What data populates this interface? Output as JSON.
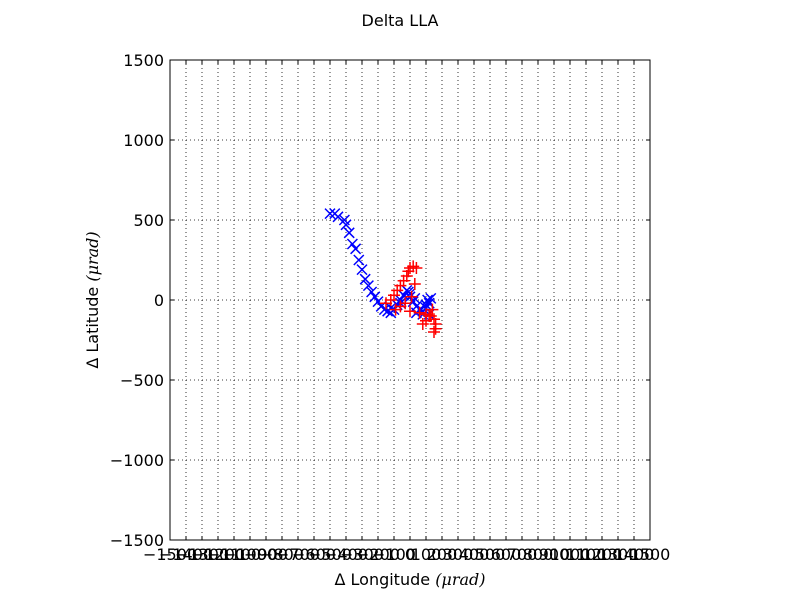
{
  "chart_data": {
    "type": "scatter",
    "title": "Delta LLA",
    "xlabel": "Δ Longitude",
    "xlabel_unit": "(μrad)",
    "ylabel": "Δ Latitude",
    "ylabel_unit": "(μrad)",
    "xlim": [
      -1500,
      1500
    ],
    "ylim": [
      -1500,
      1500
    ],
    "grid": true,
    "x_ticks": [
      -1500,
      -1400,
      -1300,
      -1200,
      -1100,
      -1000,
      -900,
      -800,
      -700,
      -600,
      -500,
      -400,
      -300,
      -200,
      -100,
      0,
      100,
      200,
      300,
      400,
      500,
      600,
      700,
      800,
      900,
      1000,
      1100,
      1200,
      1300,
      1400,
      1500
    ],
    "x_tick_labels": [
      "−1500",
      "−1400",
      "−1300",
      "−1200",
      "−1100",
      "−1000",
      "−900",
      "−800",
      "−700",
      "−600",
      "−500",
      "−400",
      "−300",
      "−200",
      "−100",
      "0",
      "100",
      "200",
      "300",
      "400",
      "500",
      "600",
      "700",
      "800",
      "900",
      "1000",
      "1100",
      "1200",
      "1300",
      "1400",
      "1500"
    ],
    "y_ticks": [
      1500,
      1000,
      500,
      0,
      -500,
      -1000,
      -1500
    ],
    "y_tick_labels": [
      "1500",
      "1000",
      "500",
      "0",
      "−500",
      "−1000",
      "−1500"
    ],
    "series": [
      {
        "marker": "x",
        "color": "#0000ff",
        "x": [
          -500,
          -470,
          -450,
          -410,
          -400,
          -380,
          -360,
          -340,
          -320,
          -300,
          -280,
          -260,
          -240,
          -220,
          -200,
          -180,
          -160,
          -140,
          -120,
          -100,
          -80,
          -60,
          -40,
          -20,
          0,
          20,
          40,
          60,
          80,
          100,
          120,
          130,
          -120,
          -60,
          0,
          40,
          80,
          100,
          110,
          -10,
          30,
          70,
          120
        ],
        "y": [
          540,
          540,
          520,
          500,
          470,
          420,
          350,
          320,
          250,
          190,
          130,
          90,
          50,
          20,
          -10,
          -40,
          -60,
          -70,
          -80,
          -60,
          -30,
          0,
          30,
          60,
          20,
          -10,
          -40,
          -60,
          -70,
          -50,
          -20,
          10,
          -50,
          -20,
          40,
          -80,
          -90,
          -30,
          0,
          50,
          10,
          -60,
          -90
        ]
      },
      {
        "marker": "+",
        "color": "#ff0000",
        "x": [
          -150,
          -120,
          -100,
          -80,
          -60,
          -40,
          -20,
          -10,
          0,
          20,
          40,
          30,
          10,
          -30,
          -60,
          -90,
          0,
          60,
          100,
          130,
          150,
          160,
          160,
          150,
          140,
          120,
          100,
          80
        ],
        "y": [
          -20,
          0,
          30,
          60,
          90,
          120,
          150,
          180,
          200,
          210,
          200,
          100,
          20,
          -20,
          -40,
          -60,
          -70,
          -80,
          -90,
          -100,
          -120,
          -150,
          -180,
          -200,
          -60,
          -100,
          -130,
          -150
        ]
      }
    ]
  }
}
